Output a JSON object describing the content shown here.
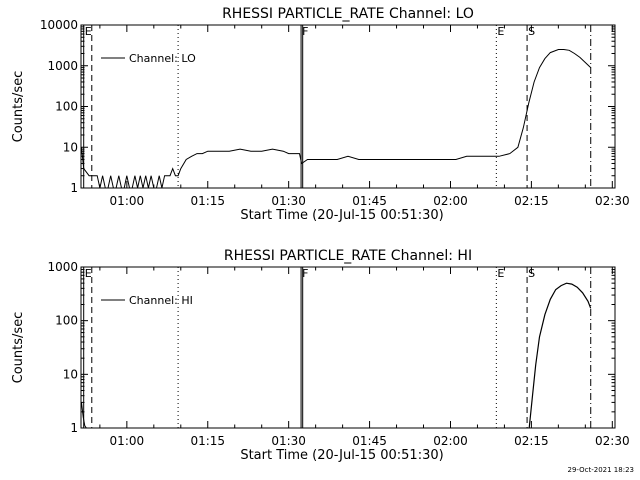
{
  "stamp": "29-Oct-2021 18:23",
  "chart_data": [
    {
      "type": "line",
      "title": "RHESSI PARTICLE_RATE Channel: LO",
      "xlabel": "Start Time (20-Jul-15 00:51:30)",
      "ylabel": "Counts/sec",
      "yscale": "log",
      "ylim": [
        1,
        10000
      ],
      "xlim_minutes": [
        51.5,
        150.5
      ],
      "x_ticks": [
        {
          "t": 60,
          "label": "01:00"
        },
        {
          "t": 75,
          "label": "01:15"
        },
        {
          "t": 90,
          "label": "01:30"
        },
        {
          "t": 105,
          "label": "01:45"
        },
        {
          "t": 120,
          "label": "02:00"
        },
        {
          "t": 135,
          "label": "02:15"
        },
        {
          "t": 150,
          "label": "02:30"
        }
      ],
      "y_ticks": [
        {
          "v": 1,
          "label": "1"
        },
        {
          "v": 10,
          "label": "10"
        },
        {
          "v": 100,
          "label": "100"
        },
        {
          "v": 1000,
          "label": "1000"
        },
        {
          "v": 10000,
          "label": "10000"
        }
      ],
      "legend": {
        "label": "Channel: LO",
        "position": "top-left"
      },
      "markers": [
        {
          "t": 52.0,
          "style": "solid",
          "label": "E"
        },
        {
          "t": 53.5,
          "style": "dashed",
          "label": ""
        },
        {
          "t": 69.5,
          "style": "dotted",
          "label": ""
        },
        {
          "t": 92.3,
          "style": "solid",
          "label": "F"
        },
        {
          "t": 92.6,
          "style": "solid",
          "label": ""
        },
        {
          "t": 128.5,
          "style": "dotted",
          "label": "E"
        },
        {
          "t": 134.2,
          "style": "dashed",
          "label": "S"
        },
        {
          "t": 146.0,
          "style": "dashdot",
          "label": ""
        }
      ],
      "series": [
        {
          "name": "Channel: LO",
          "x": [
            51.6,
            52.0,
            53.0,
            54.0,
            54.5,
            55.0,
            55.5,
            56.0,
            56.5,
            57.0,
            57.5,
            58.0,
            58.5,
            59.0,
            59.5,
            60.0,
            60.5,
            61.0,
            61.5,
            62.0,
            62.5,
            63.0,
            63.5,
            64.0,
            64.5,
            65.0,
            65.5,
            66.0,
            66.5,
            67.0,
            67.5,
            68.0,
            68.5,
            69.0,
            69.5,
            70.0,
            71.0,
            72.0,
            73.0,
            74.0,
            75.0,
            77.0,
            79.0,
            81.0,
            83.0,
            85.0,
            87.0,
            89.0,
            90.0,
            92.0,
            92.4,
            93.5,
            95.0,
            97.0,
            99.0,
            101.0,
            103.0,
            105.0,
            107.0,
            109.0,
            111.0,
            113.0,
            115.0,
            117.0,
            119.0,
            121.0,
            123.0,
            125.0,
            127.0,
            129.0,
            131.0,
            132.5,
            133.5,
            134.5,
            135.5,
            136.5,
            137.5,
            138.5,
            140.0,
            141.0,
            142.0,
            143.0,
            144.0,
            145.0,
            146.0
          ],
          "y": [
            10,
            3,
            2,
            2,
            2,
            1,
            2,
            1,
            1,
            2,
            1,
            1,
            2,
            1,
            1,
            2,
            1,
            1,
            2,
            1,
            2,
            1,
            2,
            1,
            2,
            1,
            1,
            2,
            1,
            2,
            2,
            2,
            3,
            2,
            2,
            3,
            5,
            6,
            7,
            7,
            8,
            8,
            8,
            9,
            8,
            8,
            9,
            8,
            7,
            7,
            4,
            5,
            5,
            5,
            5,
            6,
            5,
            5,
            5,
            5,
            5,
            5,
            5,
            5,
            5,
            5,
            6,
            6,
            6,
            6,
            7,
            10,
            30,
            120,
            400,
            900,
            1500,
            2100,
            2500,
            2500,
            2400,
            2000,
            1600,
            1200,
            900
          ]
        }
      ]
    },
    {
      "type": "line",
      "title": "RHESSI PARTICLE_RATE Channel: HI",
      "xlabel": "Start Time (20-Jul-15 00:51:30)",
      "ylabel": "Counts/sec",
      "yscale": "log",
      "ylim": [
        1,
        1000
      ],
      "xlim_minutes": [
        51.5,
        150.5
      ],
      "x_ticks": [
        {
          "t": 60,
          "label": "01:00"
        },
        {
          "t": 75,
          "label": "01:15"
        },
        {
          "t": 90,
          "label": "01:30"
        },
        {
          "t": 105,
          "label": "01:45"
        },
        {
          "t": 120,
          "label": "02:00"
        },
        {
          "t": 135,
          "label": "02:15"
        },
        {
          "t": 150,
          "label": "02:30"
        }
      ],
      "y_ticks": [
        {
          "v": 1,
          "label": "1"
        },
        {
          "v": 10,
          "label": "10"
        },
        {
          "v": 100,
          "label": "100"
        },
        {
          "v": 1000,
          "label": "1000"
        }
      ],
      "legend": {
        "label": "Channel: HI",
        "position": "top-left"
      },
      "markers": [
        {
          "t": 52.0,
          "style": "solid",
          "label": "E"
        },
        {
          "t": 53.5,
          "style": "dashed",
          "label": ""
        },
        {
          "t": 69.5,
          "style": "dotted",
          "label": ""
        },
        {
          "t": 92.3,
          "style": "solid",
          "label": "F"
        },
        {
          "t": 92.6,
          "style": "solid",
          "label": ""
        },
        {
          "t": 128.5,
          "style": "dotted",
          "label": "E"
        },
        {
          "t": 134.2,
          "style": "dashed",
          "label": "S"
        },
        {
          "t": 146.0,
          "style": "dashdot",
          "label": ""
        }
      ],
      "series": [
        {
          "name": "Channel: HI",
          "x": [
            51.6,
            51.9,
            52.2,
            52.5
          ],
          "y": [
            3,
            1.6,
            1.1,
            1
          ],
          "x2": [
            134.6,
            135.2,
            135.8,
            136.5,
            137.5,
            138.5,
            139.5,
            140.5,
            141.5,
            142.5,
            143.5,
            144.5,
            145.5,
            146.0
          ],
          "y2": [
            1,
            4,
            15,
            50,
            130,
            250,
            380,
            450,
            500,
            480,
            420,
            330,
            230,
            170
          ]
        }
      ]
    }
  ]
}
